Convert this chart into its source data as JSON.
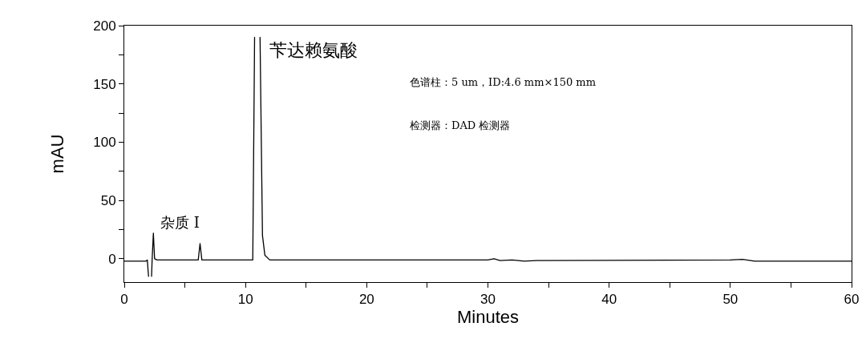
{
  "chart_data": {
    "type": "line",
    "xlabel": "Minutes",
    "ylabel": "mAU",
    "x": [
      0,
      1.8,
      1.9,
      2.0,
      2.05,
      2.2,
      2.25,
      2.3,
      2.4,
      2.5,
      2.7,
      6.1,
      6.25,
      6.4,
      10.6,
      10.75,
      10.8,
      11.15,
      11.2,
      11.4,
      11.6,
      12,
      30,
      30.5,
      31,
      32,
      33,
      34,
      50,
      51,
      52,
      60
    ],
    "series": [
      {
        "color": "#000000",
        "values": [
          -2,
          -2,
          -1,
          -15,
          null,
          null,
          -15,
          0,
          22,
          0,
          -1,
          -1,
          13,
          -1,
          -1,
          190,
          null,
          null,
          190,
          20,
          3,
          -1,
          -1,
          0,
          -1.5,
          -1,
          -2,
          -1.5,
          -1,
          -0.5,
          -2,
          -2
        ]
      }
    ],
    "xlim": [
      0,
      60
    ],
    "ylim": [
      -20,
      200
    ],
    "xticks": [
      0,
      {
        "value": 5,
        "label": null
      },
      10,
      {
        "value": 15,
        "label": null
      },
      20,
      {
        "value": 25,
        "label": null
      },
      30,
      {
        "value": 35,
        "label": null
      },
      40,
      {
        "value": 45,
        "label": null
      },
      50,
      {
        "value": 55,
        "label": null
      },
      60
    ],
    "yticks": [
      0,
      {
        "value": 25,
        "label": null
      },
      50,
      {
        "value": 75,
        "label": null
      },
      100,
      {
        "value": 125,
        "label": null
      },
      150,
      {
        "value": 175,
        "label": null
      },
      200
    ],
    "grid": false,
    "marker": "none",
    "line_style": "solid",
    "annotations": [
      "苄达赖氨酸",
      {
        "text": "杂质 I",
        "x": 6.25,
        "y": 13
      },
      "色谱柱：5 um，ID:4.6 mm×150 mm",
      "检测器：DAD 检测器"
    ]
  }
}
